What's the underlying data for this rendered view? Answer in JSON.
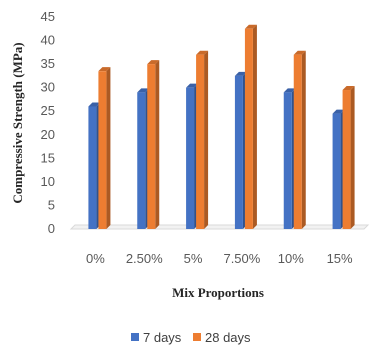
{
  "chart_data": {
    "type": "bar",
    "title": "",
    "xlabel": "Mix Proportions",
    "ylabel": "Compressive Strength (MPa)",
    "ylim": [
      0,
      45
    ],
    "yticks": [
      "0",
      "5",
      "10",
      "15",
      "20",
      "25",
      "30",
      "35",
      "40",
      "45"
    ],
    "categories": [
      "0%",
      "2.50%",
      "5%",
      "7.50%",
      "10%",
      "15%"
    ],
    "series": [
      {
        "name": "7 days",
        "color": "#4472c4",
        "values": [
          26.0,
          29.0,
          30.0,
          32.5,
          29.0,
          24.5
        ]
      },
      {
        "name": "28 days",
        "color": "#ed7d31",
        "values": [
          33.5,
          35.0,
          37.0,
          42.5,
          37.0,
          29.5
        ]
      }
    ],
    "grid": false,
    "legend_position": "bottom"
  }
}
